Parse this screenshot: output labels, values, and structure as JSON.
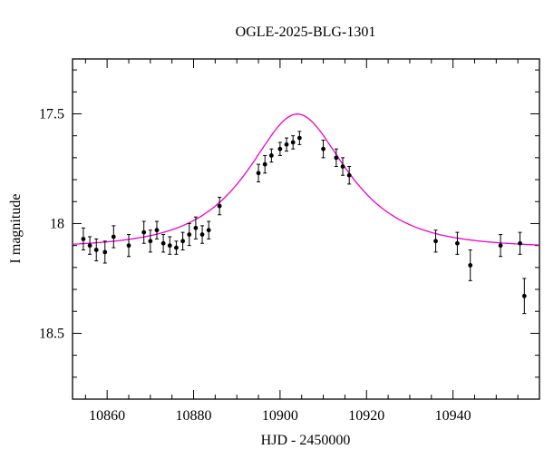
{
  "chart_data": {
    "type": "scatter",
    "title": "OGLE-2025-BLG-1301",
    "xlabel": "HJD - 2450000",
    "ylabel": "I magnitude",
    "xlim": [
      10852,
      10960
    ],
    "ylim_mag": [
      17.25,
      18.8
    ],
    "y_inverted": true,
    "grid": false,
    "xticks": [
      10860,
      10880,
      10900,
      10920,
      10940
    ],
    "yticks": [
      17.5,
      18.0,
      18.5
    ],
    "ytick_labels": [
      "17.5",
      "18",
      "18.5"
    ],
    "x_minor_step": 5,
    "y_minor_step": 0.1,
    "point_color": "#000000",
    "curve_color": "#ee00cc",
    "points": [
      [
        10854.5,
        18.07,
        0.05
      ],
      [
        10856.0,
        18.1,
        0.04
      ],
      [
        10857.5,
        18.12,
        0.05
      ],
      [
        10859.5,
        18.13,
        0.05
      ],
      [
        10861.5,
        18.06,
        0.05
      ],
      [
        10865.0,
        18.1,
        0.05
      ],
      [
        10868.5,
        18.04,
        0.05
      ],
      [
        10870.0,
        18.08,
        0.05
      ],
      [
        10871.5,
        18.03,
        0.04
      ],
      [
        10873.0,
        18.09,
        0.04
      ],
      [
        10874.5,
        18.1,
        0.04
      ],
      [
        10876.0,
        18.11,
        0.03
      ],
      [
        10877.5,
        18.08,
        0.04
      ],
      [
        10879.0,
        18.05,
        0.05
      ],
      [
        10880.5,
        18.02,
        0.05
      ],
      [
        10882.0,
        18.05,
        0.04
      ],
      [
        10883.5,
        18.03,
        0.04
      ],
      [
        10886.0,
        17.92,
        0.04
      ],
      [
        10895.0,
        17.77,
        0.04
      ],
      [
        10896.5,
        17.73,
        0.04
      ],
      [
        10898.0,
        17.69,
        0.03
      ],
      [
        10900.0,
        17.66,
        0.03
      ],
      [
        10901.5,
        17.64,
        0.03
      ],
      [
        10903.0,
        17.63,
        0.03
      ],
      [
        10904.5,
        17.61,
        0.03
      ],
      [
        10910.0,
        17.66,
        0.04
      ],
      [
        10913.0,
        17.7,
        0.04
      ],
      [
        10914.5,
        17.74,
        0.04
      ],
      [
        10916.0,
        17.78,
        0.04
      ],
      [
        10936.0,
        18.08,
        0.05
      ],
      [
        10941.0,
        18.09,
        0.05
      ],
      [
        10944.0,
        18.19,
        0.07
      ],
      [
        10951.0,
        18.1,
        0.05
      ],
      [
        10955.5,
        18.09,
        0.05
      ],
      [
        10956.5,
        18.33,
        0.08
      ]
    ],
    "model": {
      "type": "paczynski",
      "t0": 10904,
      "tE": 17,
      "u0": 0.66,
      "baseline_mag": 18.11,
      "peak_mag": 17.62
    }
  }
}
